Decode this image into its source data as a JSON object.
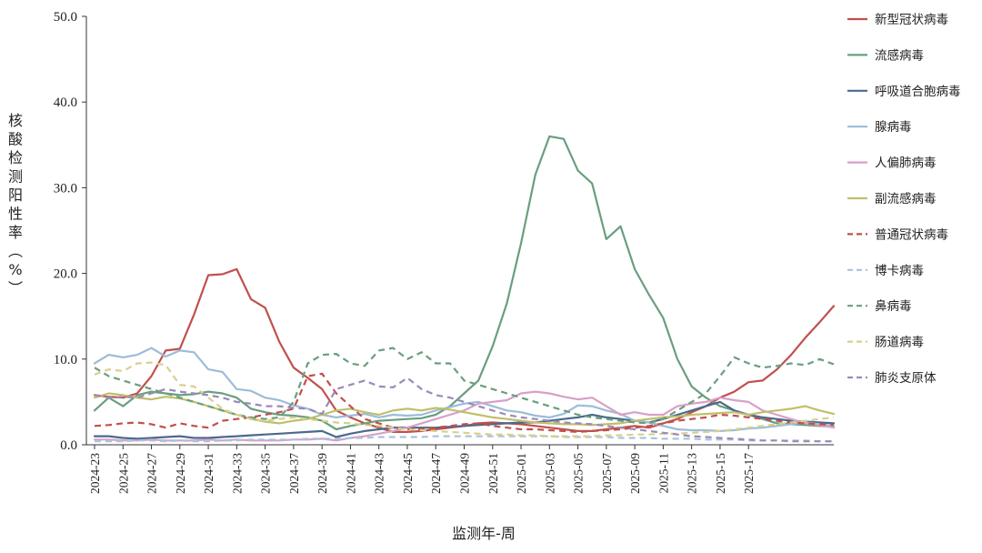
{
  "chart_data": {
    "type": "line",
    "ylabel": "核酸检测阳性率（%）",
    "xlabel": "监测年-周",
    "ylim": [
      0,
      50
    ],
    "y_ticks": [
      "0.0",
      "10.0",
      "20.0",
      "30.0",
      "40.0",
      "50.0"
    ],
    "x_tick_labels": [
      "2024-23",
      "2024-25",
      "2024-27",
      "2024-29",
      "2024-31",
      "2024-33",
      "2024-35",
      "2024-37",
      "2024-39",
      "2024-41",
      "2024-43",
      "2024-45",
      "2024-47",
      "2024-49",
      "2024-51",
      "2025-01",
      "2025-03",
      "2025-05",
      "2025-07",
      "2025-09",
      "2025-11",
      "2025-13",
      "2025-15",
      "2025-17"
    ],
    "legend_position": "right",
    "grid": false,
    "series": [
      {
        "name": "新型冠状病毒",
        "color": "#c0504d",
        "dash": "solid",
        "values": [
          5.8,
          5.6,
          5.5,
          6.0,
          8.0,
          11.0,
          11.2,
          15.2,
          19.8,
          19.9,
          20.5,
          17.0,
          16.0,
          12.0,
          9.0,
          7.8,
          6.5,
          4.0,
          3.2,
          2.5,
          2.0,
          1.5,
          1.5,
          1.6,
          1.8,
          2.0,
          2.2,
          2.5,
          2.6,
          2.5,
          2.4,
          2.2,
          2.0,
          1.8,
          1.6,
          1.6,
          1.8,
          2.0,
          2.2,
          2.0,
          2.5,
          3.0,
          3.8,
          4.5,
          5.5,
          6.2,
          7.3,
          7.5,
          8.8,
          10.5,
          12.5,
          14.3,
          16.2
        ]
      },
      {
        "name": "流感病毒",
        "color": "#6a9e7f",
        "dash": "solid",
        "values": [
          4.0,
          5.5,
          4.5,
          5.8,
          6.2,
          6.0,
          5.8,
          5.9,
          6.2,
          6.0,
          5.5,
          4.2,
          3.8,
          3.5,
          3.4,
          3.2,
          2.8,
          1.8,
          2.2,
          2.5,
          2.8,
          2.9,
          3.0,
          3.1,
          3.5,
          4.5,
          6.0,
          7.5,
          11.5,
          16.5,
          23.5,
          31.5,
          36.0,
          35.7,
          32.0,
          30.5,
          24.0,
          25.5,
          20.5,
          17.5,
          14.8,
          10.0,
          6.8,
          5.5,
          4.5,
          4.0,
          3.5,
          3.0,
          2.5,
          2.4,
          2.3,
          2.2,
          2.1
        ]
      },
      {
        "name": "呼吸道合胞病毒",
        "color": "#4a6a8c",
        "dash": "solid",
        "values": [
          1.0,
          1.0,
          0.8,
          0.7,
          0.8,
          0.9,
          1.0,
          0.8,
          0.8,
          0.9,
          1.0,
          1.1,
          1.2,
          1.3,
          1.4,
          1.5,
          1.6,
          0.9,
          1.3,
          1.6,
          1.8,
          2.0,
          2.0,
          2.0,
          2.0,
          2.1,
          2.2,
          2.3,
          2.4,
          2.5,
          2.6,
          2.6,
          2.8,
          3.0,
          3.2,
          3.5,
          3.2,
          3.0,
          2.8,
          2.6,
          3.0,
          3.5,
          4.0,
          4.5,
          5.0,
          4.0,
          3.5,
          3.2,
          3.0,
          2.8,
          2.7,
          2.6,
          2.5
        ]
      },
      {
        "name": "腺病毒",
        "color": "#9dbcd8",
        "dash": "solid",
        "values": [
          9.5,
          10.5,
          10.2,
          10.5,
          11.3,
          10.3,
          11.0,
          10.8,
          8.8,
          8.5,
          6.5,
          6.3,
          5.5,
          5.2,
          4.6,
          4.2,
          3.5,
          3.2,
          3.4,
          3.6,
          3.2,
          3.5,
          3.4,
          3.5,
          4.0,
          4.4,
          4.8,
          5.0,
          4.5,
          4.0,
          3.8,
          3.4,
          3.2,
          3.6,
          4.6,
          4.5,
          4.0,
          3.6,
          2.8,
          2.6,
          2.2,
          1.8,
          1.7,
          1.7,
          1.6,
          1.7,
          1.9,
          2.0,
          2.2,
          2.4,
          2.6,
          2.4,
          2.2
        ]
      },
      {
        "name": "人偏肺病毒",
        "color": "#d8a0c8",
        "dash": "solid",
        "values": [
          0.6,
          0.6,
          0.5,
          0.5,
          0.6,
          0.5,
          0.5,
          0.5,
          0.6,
          0.5,
          0.6,
          0.5,
          0.5,
          0.5,
          0.6,
          0.6,
          0.7,
          0.5,
          0.8,
          1.0,
          1.3,
          1.6,
          2.0,
          2.5,
          3.0,
          3.5,
          4.0,
          4.8,
          5.0,
          5.2,
          6.0,
          6.2,
          6.0,
          5.6,
          5.3,
          5.5,
          4.5,
          3.5,
          3.8,
          3.5,
          3.5,
          4.5,
          4.8,
          5.0,
          5.5,
          5.2,
          5.0,
          4.0,
          3.5,
          3.0,
          2.5,
          2.3,
          2.0
        ]
      },
      {
        "name": "副流感病毒",
        "color": "#c0bf6a",
        "dash": "solid",
        "values": [
          5.5,
          6.0,
          5.8,
          5.5,
          5.3,
          5.6,
          5.4,
          5.0,
          4.5,
          4.0,
          3.5,
          3.0,
          2.7,
          2.5,
          2.8,
          3.0,
          3.5,
          4.0,
          4.2,
          3.8,
          3.5,
          4.0,
          4.2,
          4.0,
          4.3,
          4.1,
          3.8,
          3.5,
          3.2,
          3.0,
          2.8,
          2.6,
          2.5,
          2.4,
          2.4,
          2.3,
          2.4,
          2.5,
          2.8,
          3.0,
          3.2,
          3.3,
          3.5,
          3.6,
          3.7,
          3.8,
          3.5,
          3.8,
          4.0,
          4.2,
          4.5,
          4.0,
          3.6
        ]
      },
      {
        "name": "普通冠状病毒",
        "color": "#c0504d",
        "dash": "dashed",
        "values": [
          2.2,
          2.3,
          2.5,
          2.6,
          2.4,
          2.0,
          2.5,
          2.2,
          2.0,
          2.8,
          3.0,
          3.2,
          3.5,
          3.8,
          4.2,
          8.0,
          8.3,
          6.0,
          4.5,
          3.0,
          2.5,
          2.0,
          1.8,
          1.8,
          2.0,
          2.2,
          2.4,
          2.5,
          2.2,
          2.0,
          1.8,
          1.8,
          1.7,
          1.6,
          1.5,
          1.6,
          1.7,
          1.8,
          2.0,
          2.2,
          2.5,
          2.8,
          3.0,
          3.2,
          3.5,
          3.4,
          3.2,
          3.0,
          2.8,
          2.6,
          2.5,
          2.4,
          2.3
        ]
      },
      {
        "name": "博卡病毒",
        "color": "#a9c4dc",
        "dash": "dashed",
        "values": [
          0.4,
          0.4,
          0.4,
          0.5,
          0.5,
          0.4,
          0.5,
          0.4,
          0.4,
          0.5,
          0.5,
          0.6,
          0.6,
          0.6,
          0.6,
          0.7,
          0.7,
          0.7,
          0.8,
          0.8,
          0.9,
          0.9,
          0.9,
          0.9,
          1.0,
          1.0,
          1.0,
          1.0,
          1.0,
          1.0,
          1.0,
          1.0,
          1.0,
          0.9,
          0.9,
          0.9,
          0.9,
          0.8,
          0.8,
          0.8,
          0.7,
          0.7,
          0.7,
          0.6,
          0.6,
          0.6,
          0.5,
          0.5,
          0.5,
          0.5,
          0.5,
          0.4,
          0.4
        ]
      },
      {
        "name": "鼻病毒",
        "color": "#6a9e7f",
        "dash": "dashed",
        "values": [
          9.0,
          8.0,
          7.5,
          7.0,
          6.5,
          6.0,
          5.5,
          5.0,
          4.5,
          4.0,
          3.5,
          3.2,
          3.0,
          3.2,
          5.0,
          9.5,
          10.5,
          10.6,
          9.5,
          9.2,
          11.0,
          11.3,
          10.0,
          10.8,
          9.5,
          9.5,
          7.5,
          7.0,
          6.5,
          6.0,
          5.5,
          5.0,
          4.5,
          4.0,
          3.5,
          3.2,
          3.0,
          2.8,
          2.6,
          2.5,
          3.0,
          4.0,
          5.0,
          6.0,
          8.0,
          10.2,
          9.5,
          9.0,
          9.2,
          9.5,
          9.3,
          10.0,
          9.4
        ]
      },
      {
        "name": "肠道病毒",
        "color": "#d8d08a",
        "dash": "dashed",
        "values": [
          8.2,
          8.8,
          8.6,
          9.5,
          9.6,
          9.3,
          7.0,
          6.8,
          5.5,
          4.2,
          3.5,
          3.0,
          2.8,
          3.0,
          3.2,
          3.0,
          2.8,
          2.6,
          2.5,
          2.3,
          2.2,
          2.0,
          1.8,
          1.7,
          1.6,
          1.5,
          1.4,
          1.3,
          1.2,
          1.2,
          1.1,
          1.1,
          1.0,
          1.0,
          1.0,
          1.0,
          1.1,
          1.1,
          1.2,
          1.2,
          1.3,
          1.3,
          1.4,
          1.5,
          1.6,
          1.8,
          2.0,
          2.2,
          2.4,
          2.6,
          2.8,
          3.0,
          3.2
        ]
      },
      {
        "name": "肺炎支原体",
        "color": "#9a8ab8",
        "dash": "dashed",
        "values": [
          5.8,
          5.5,
          5.6,
          5.5,
          6.0,
          6.5,
          6.2,
          6.0,
          5.8,
          5.5,
          5.0,
          4.8,
          4.5,
          4.5,
          4.3,
          4.2,
          3.6,
          6.5,
          7.0,
          7.5,
          6.8,
          6.7,
          7.8,
          6.5,
          5.8,
          5.5,
          5.0,
          4.5,
          4.0,
          3.5,
          3.2,
          3.0,
          2.8,
          2.6,
          2.5,
          2.4,
          2.2,
          2.0,
          1.8,
          1.6,
          1.4,
          1.2,
          1.0,
          0.9,
          0.8,
          0.7,
          0.6,
          0.5,
          0.5,
          0.4,
          0.4,
          0.4,
          0.4
        ]
      }
    ]
  }
}
